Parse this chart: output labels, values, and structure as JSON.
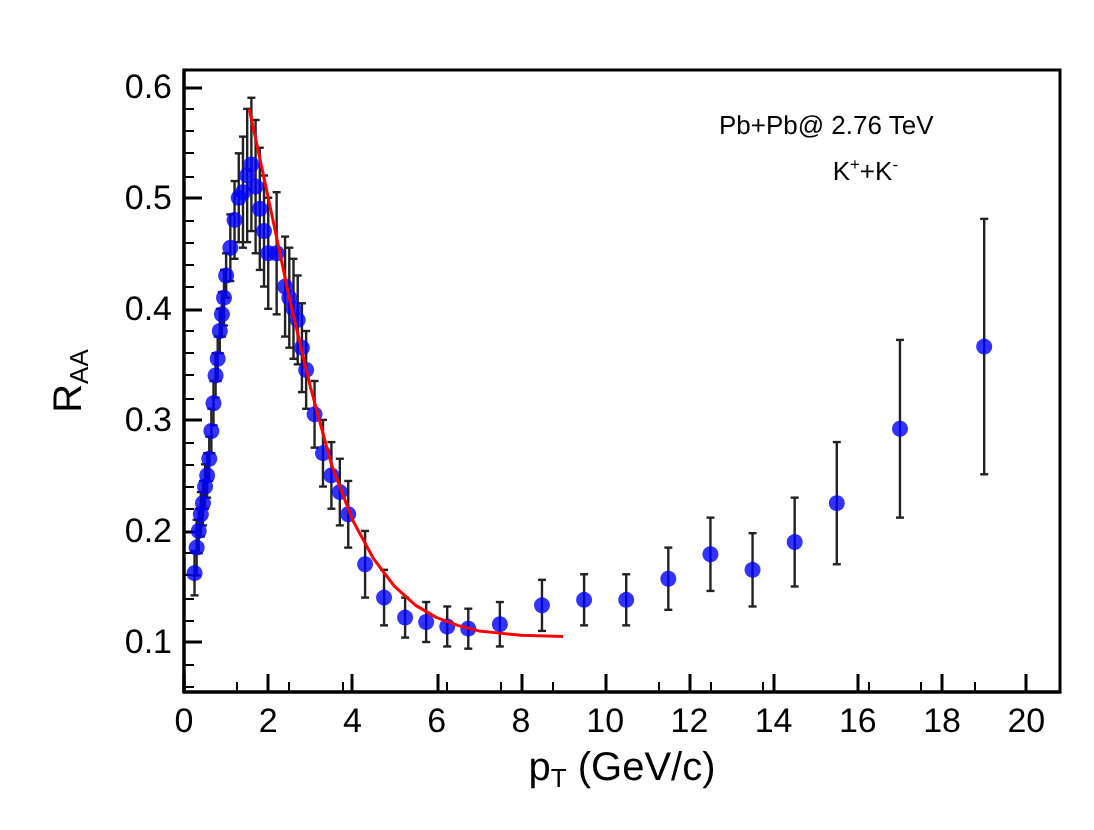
{
  "chart_data": {
    "type": "scatter",
    "xlabel": "p$_{T}$ (GeV/c)",
    "ylabel": "R$_{AA}$",
    "annotations": [
      "Pb+Pb@ 2.76 TeV",
      "K$^{+}$+K$^{-}$"
    ],
    "xlim": [
      0,
      20.8
    ],
    "ylim": [
      0.055,
      0.615
    ],
    "xticks": [
      0,
      2,
      4,
      6,
      8,
      10,
      12,
      14,
      16,
      18,
      20
    ],
    "yticks": [
      0.1,
      0.2,
      0.3,
      0.4,
      0.5,
      0.6
    ],
    "grid": false,
    "marker": "circle",
    "series": [
      {
        "color": "#0000ff",
        "x": [
          0.25,
          0.3,
          0.35,
          0.4,
          0.45,
          0.5,
          0.55,
          0.6,
          0.65,
          0.7,
          0.75,
          0.8,
          0.85,
          0.9,
          0.95,
          1.0,
          1.1,
          1.2,
          1.3,
          1.4,
          1.5,
          1.6,
          1.7,
          1.8,
          1.9,
          2.0,
          2.2,
          2.4,
          2.5,
          2.6,
          2.7,
          2.8,
          2.9,
          3.1,
          3.3,
          3.5,
          3.7,
          3.9,
          4.3,
          4.75,
          5.25,
          5.75,
          6.25,
          6.75,
          7.5,
          8.5,
          9.5,
          10.5,
          11.5,
          12.5,
          13.5,
          14.5,
          15.5,
          17,
          19
        ],
        "values": [
          0.162,
          0.185,
          0.2,
          0.215,
          0.225,
          0.24,
          0.25,
          0.265,
          0.29,
          0.315,
          0.34,
          0.355,
          0.38,
          0.395,
          0.41,
          0.43,
          0.455,
          0.48,
          0.5,
          0.505,
          0.52,
          0.53,
          0.51,
          0.49,
          0.47,
          0.45,
          0.45,
          0.42,
          0.41,
          0.4,
          0.39,
          0.365,
          0.345,
          0.305,
          0.27,
          0.25,
          0.235,
          0.215,
          0.17,
          0.14,
          0.122,
          0.118,
          0.114,
          0.112,
          0.116,
          0.133,
          0.138,
          0.138,
          0.157,
          0.179,
          0.165,
          0.19,
          0.225,
          0.292,
          0.366
        ],
        "errors": [
          0.02,
          0.025,
          0.02,
          0.02,
          0.02,
          0.02,
          0.02,
          0.02,
          0.02,
          0.02,
          0.02,
          0.02,
          0.02,
          0.02,
          0.025,
          0.02,
          0.03,
          0.035,
          0.04,
          0.05,
          0.06,
          0.06,
          0.06,
          0.055,
          0.05,
          0.05,
          0.055,
          0.045,
          0.045,
          0.045,
          0.04,
          0.04,
          0.035,
          0.03,
          0.03,
          0.03,
          0.03,
          0.03,
          0.03,
          0.025,
          0.018,
          0.018,
          0.018,
          0.018,
          0.02,
          0.023,
          0.023,
          0.023,
          0.028,
          0.033,
          0.033,
          0.04,
          0.055,
          0.08,
          0.115
        ]
      },
      {
        "type": "line",
        "color": "#ff0000",
        "marker": "none",
        "x": [
          1.55,
          2,
          2.5,
          3,
          3.5,
          4,
          4.5,
          5,
          5.5,
          6,
          6.5,
          7,
          7.5,
          8,
          9
        ],
        "values": [
          0.58,
          0.5,
          0.41,
          0.33,
          0.26,
          0.21,
          0.175,
          0.15,
          0.133,
          0.122,
          0.115,
          0.11,
          0.108,
          0.106,
          0.105
        ]
      }
    ]
  }
}
